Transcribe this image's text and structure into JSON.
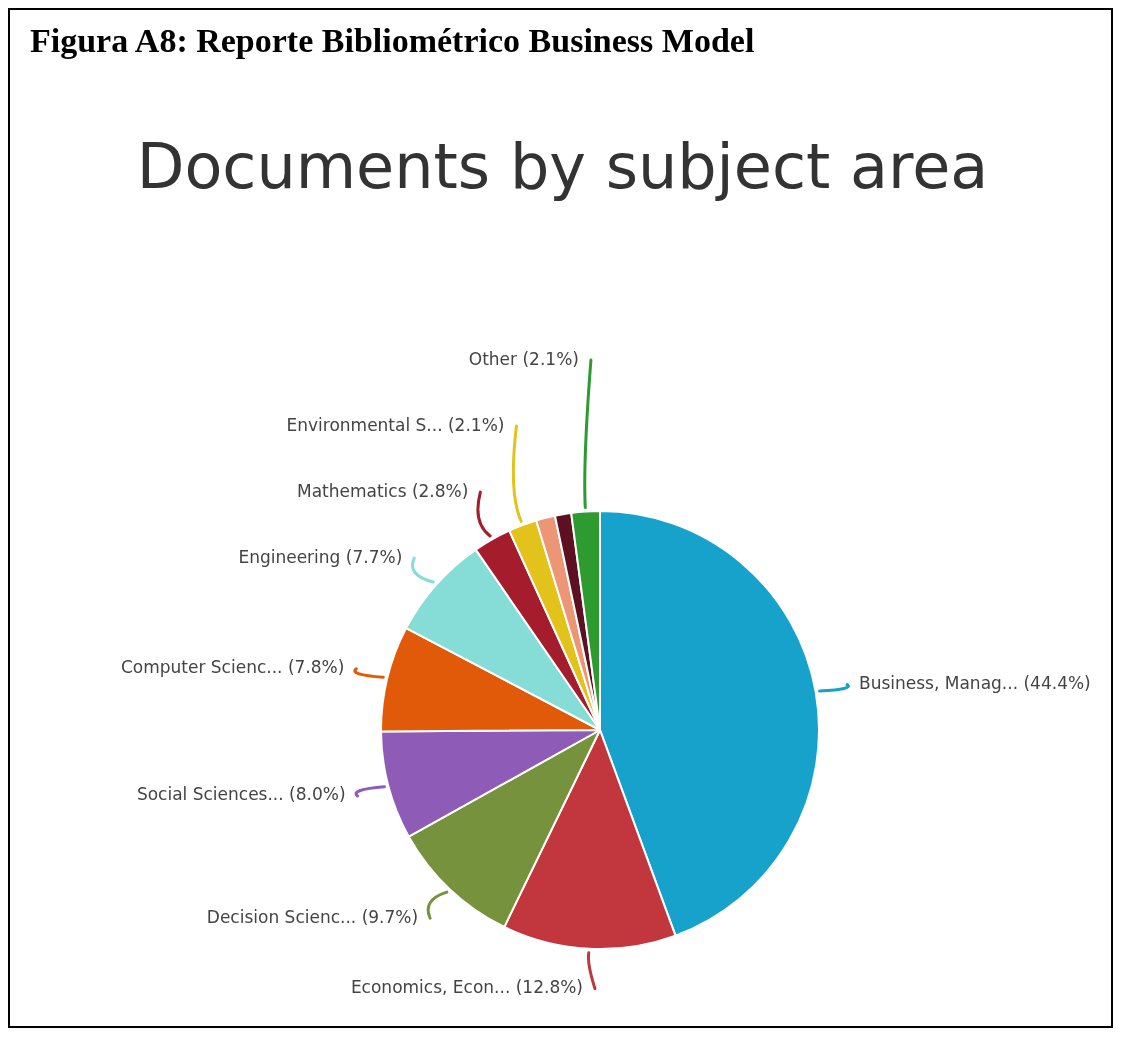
{
  "chart_data": {
    "type": "pie",
    "title": "Figura A8: Reporte Bibliométrico Business Model",
    "subtitle": "Documents by subject area",
    "categories": [
      "Business, Manag...",
      "Economics, Econ...",
      "Decision Scienc...",
      "Social Sciences...",
      "Computer Scienc...",
      "Engineering",
      "Mathematics",
      "Environmental S...",
      null,
      null,
      "Other"
    ],
    "values": [
      44.4,
      12.8,
      9.7,
      8.0,
      7.8,
      7.7,
      2.8,
      2.1,
      1.4,
      1.2,
      2.1
    ],
    "value_labels": [
      "(44.4%)",
      "(12.8%)",
      "(9.7%)",
      "(8.0%)",
      "(7.8%)",
      "(7.7%)",
      "(2.8%)",
      "(2.1%)",
      null,
      null,
      "(2.1%)"
    ],
    "colors": [
      "#16a2cb",
      "#c2363e",
      "#76923c",
      "#8e5bb6",
      "#e05a0a",
      "#86dcd6",
      "#a51d2d",
      "#e3c21c",
      "#ec9676",
      "#5c1022",
      "#2e9b30"
    ]
  }
}
